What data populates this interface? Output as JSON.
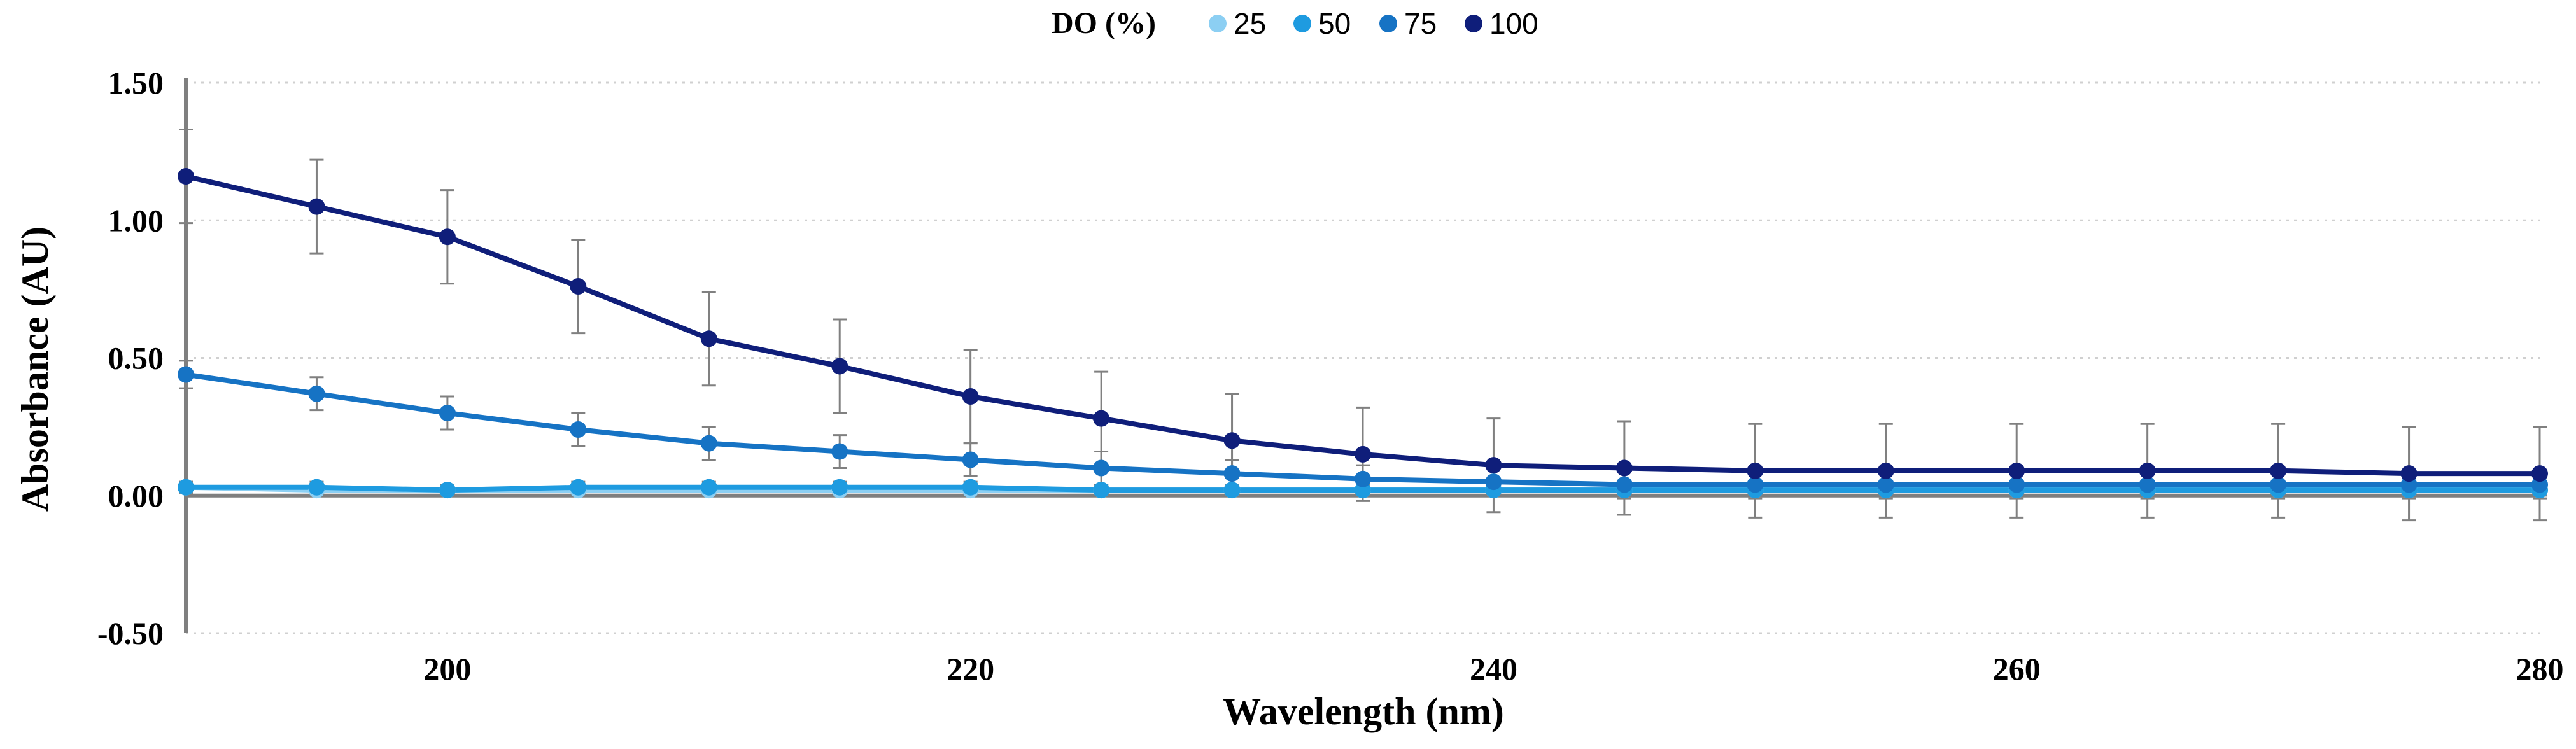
{
  "chart_data": {
    "type": "line",
    "title": "",
    "xlabel": "Wavelength (nm)",
    "ylabel": "Absorbance (AU)",
    "xlim": [
      190,
      280
    ],
    "ylim": [
      -0.5,
      1.5
    ],
    "xticks": [
      200,
      220,
      240,
      260,
      280
    ],
    "xtick_labels": [
      "200",
      "220",
      "240",
      "260",
      "280"
    ],
    "yticks": [
      1.5,
      1.0,
      0.5,
      0.0,
      -0.5
    ],
    "ytick_labels": [
      "1.50",
      "1.00",
      "0.50",
      "0.00",
      "-0.50"
    ],
    "grid": "horizontal-dotted",
    "legend": {
      "title": "DO (%)",
      "position": "top-center",
      "entries": [
        "25",
        "50",
        "75",
        "100"
      ]
    },
    "x": [
      190,
      195,
      200,
      205,
      210,
      215,
      220,
      225,
      230,
      235,
      240,
      245,
      250,
      255,
      260,
      265,
      270,
      275,
      280
    ],
    "series": [
      {
        "name": "25",
        "color": "#8ccff3",
        "values": [
          0.03,
          0.02,
          0.02,
          0.02,
          0.02,
          0.02,
          0.02,
          0.02,
          0.02,
          0.02,
          0.02,
          0.02,
          0.02,
          0.02,
          0.02,
          0.02,
          0.02,
          0.02,
          0.02
        ],
        "errors": [
          0.02,
          0.02,
          0.02,
          0.02,
          0.02,
          0.02,
          0.02,
          0.02,
          0.02,
          0.02,
          0.02,
          0.02,
          0.02,
          0.02,
          0.02,
          0.02,
          0.02,
          0.02,
          0.02
        ]
      },
      {
        "name": "50",
        "color": "#1e9be0",
        "values": [
          0.03,
          0.03,
          0.02,
          0.03,
          0.03,
          0.03,
          0.03,
          0.02,
          0.02,
          0.02,
          0.02,
          0.02,
          0.02,
          0.02,
          0.02,
          0.02,
          0.02,
          0.02,
          0.02
        ],
        "errors": [
          0.02,
          0.02,
          0.02,
          0.02,
          0.02,
          0.02,
          0.02,
          0.02,
          0.02,
          0.02,
          0.02,
          0.02,
          0.02,
          0.02,
          0.02,
          0.02,
          0.02,
          0.02,
          0.02
        ]
      },
      {
        "name": "75",
        "color": "#1673c4",
        "values": [
          0.44,
          0.37,
          0.3,
          0.24,
          0.19,
          0.16,
          0.13,
          0.1,
          0.08,
          0.06,
          0.05,
          0.04,
          0.04,
          0.04,
          0.04,
          0.04,
          0.04,
          0.04,
          0.04
        ],
        "errors": [
          0.05,
          0.06,
          0.06,
          0.06,
          0.06,
          0.06,
          0.06,
          0.06,
          0.05,
          0.05,
          0.05,
          0.05,
          0.05,
          0.05,
          0.05,
          0.05,
          0.05,
          0.05,
          0.05
        ]
      },
      {
        "name": "100",
        "color": "#0f1e7a",
        "values": [
          1.16,
          1.05,
          0.94,
          0.76,
          0.57,
          0.47,
          0.36,
          0.28,
          0.2,
          0.15,
          0.11,
          0.1,
          0.09,
          0.09,
          0.09,
          0.09,
          0.09,
          0.08,
          0.08
        ],
        "errors": [
          0.17,
          0.17,
          0.17,
          0.17,
          0.17,
          0.17,
          0.17,
          0.17,
          0.17,
          0.17,
          0.17,
          0.17,
          0.17,
          0.17,
          0.17,
          0.17,
          0.17,
          0.17,
          0.17
        ]
      }
    ]
  }
}
